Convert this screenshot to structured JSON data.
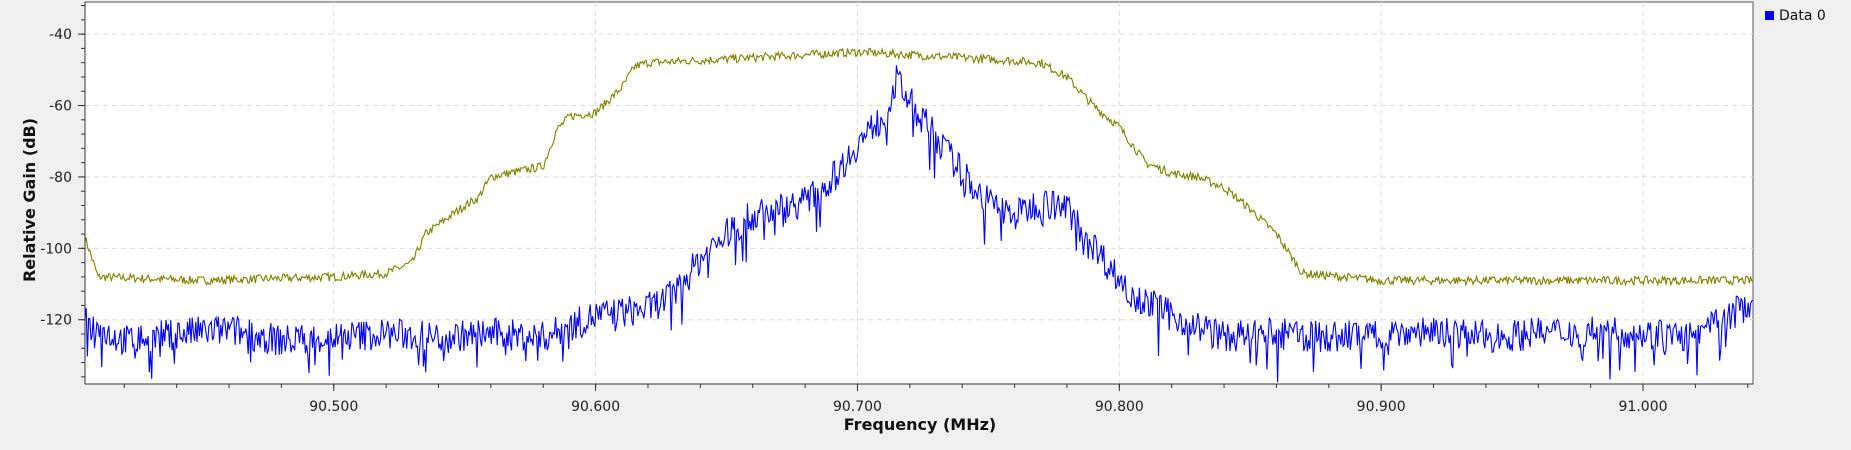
{
  "chart_data": {
    "type": "line",
    "xlabel": "Frequency (MHz)",
    "ylabel": "Relative Gain (dB)",
    "xlim": [
      90.405,
      91.042
    ],
    "ylim": [
      -138,
      -31
    ],
    "x_ticks": [
      90.5,
      90.6,
      90.7,
      90.8,
      90.9,
      91.0
    ],
    "x_tick_labels": [
      "90.500",
      "90.600",
      "90.700",
      "90.800",
      "90.900",
      "91.000"
    ],
    "y_ticks": [
      -40,
      -60,
      -80,
      -100,
      -120
    ],
    "y_tick_labels": [
      "-40",
      "-60",
      "-80",
      "-100",
      "-120"
    ],
    "grid": true,
    "legend": {
      "position": "top-right",
      "entries": [
        "Data 0"
      ]
    },
    "colors": {
      "series_0": "#0000ff",
      "series_1": "#808000",
      "background": "#ffffff"
    },
    "series": [
      {
        "name": "Data 0",
        "color": "#0000ff",
        "x": [
          90.405,
          90.42,
          90.44,
          90.46,
          90.48,
          90.5,
          90.52,
          90.54,
          90.56,
          90.58,
          90.6,
          90.62,
          90.63,
          90.64,
          90.65,
          90.66,
          90.67,
          90.68,
          90.69,
          90.7,
          90.71,
          90.715,
          90.72,
          90.73,
          90.74,
          90.75,
          90.76,
          90.77,
          90.78,
          90.79,
          90.8,
          90.81,
          90.82,
          90.84,
          90.86,
          90.88,
          90.9,
          90.92,
          90.94,
          90.96,
          90.98,
          91.0,
          91.02,
          91.042
        ],
        "values": [
          -120,
          -125,
          -123,
          -122,
          -125,
          -124,
          -123,
          -124,
          -123,
          -124,
          -118,
          -116,
          -112,
          -102,
          -95,
          -90,
          -88,
          -86,
          -80,
          -70,
          -62,
          -52,
          -58,
          -68,
          -78,
          -86,
          -90,
          -86,
          -88,
          -98,
          -108,
          -114,
          -118,
          -124,
          -123,
          -124,
          -123,
          -122,
          -124,
          -123,
          -122,
          -123,
          -124,
          -114
        ]
      },
      {
        "color": "#808000",
        "x": [
          90.405,
          90.41,
          90.45,
          90.5,
          90.52,
          90.53,
          90.535,
          90.55,
          90.555,
          90.56,
          90.58,
          90.585,
          90.59,
          90.6,
          90.61,
          90.615,
          90.62,
          90.65,
          90.7,
          90.75,
          90.77,
          90.78,
          90.79,
          90.8,
          90.81,
          90.82,
          90.83,
          90.84,
          90.85,
          90.86,
          90.87,
          90.9,
          90.95,
          91.0,
          91.042
        ],
        "values": [
          -97,
          -108,
          -109,
          -108,
          -107,
          -104,
          -96,
          -88,
          -86,
          -80,
          -77,
          -67,
          -63,
          -62,
          -55,
          -49,
          -48,
          -47,
          -45,
          -47,
          -48,
          -52,
          -60,
          -66,
          -76,
          -79,
          -80,
          -83,
          -89,
          -96,
          -107,
          -109,
          -109,
          -109,
          -109
        ]
      }
    ]
  }
}
